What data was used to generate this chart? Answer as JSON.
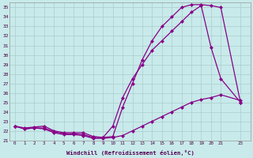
{
  "title": "",
  "xlabel": "Windchill (Refroidissement éolien,°C)",
  "bg_color": "#c8eaea",
  "grid_color": "#aacccc",
  "line_color": "#880088",
  "xlim": [
    -0.5,
    23.5
  ],
  "ylim": [
    21,
    35.5
  ],
  "xtick_vals": [
    0,
    1,
    2,
    3,
    4,
    5,
    6,
    7,
    8,
    9,
    10,
    11,
    12,
    13,
    14,
    15,
    16,
    17,
    18,
    19,
    20,
    21,
    23
  ],
  "ytick_vals": [
    21,
    22,
    23,
    24,
    25,
    26,
    27,
    28,
    29,
    30,
    31,
    32,
    33,
    34,
    35
  ],
  "line1_x": [
    0,
    1,
    2,
    3,
    4,
    5,
    6,
    7,
    8,
    9,
    10,
    11,
    12,
    13,
    14,
    15,
    16,
    17,
    18,
    19,
    20,
    21,
    23
  ],
  "line1_y": [
    22.5,
    22.2,
    22.3,
    22.2,
    21.8,
    21.6,
    21.6,
    21.5,
    21.2,
    21.2,
    21.3,
    21.5,
    22.0,
    22.5,
    23.0,
    23.5,
    24.0,
    24.5,
    25.0,
    25.3,
    25.5,
    25.8,
    25.2
  ],
  "line2_x": [
    0,
    1,
    2,
    3,
    4,
    5,
    6,
    7,
    8,
    9,
    10,
    11,
    12,
    13,
    14,
    15,
    16,
    17,
    18,
    19,
    20,
    21,
    23
  ],
  "line2_y": [
    22.5,
    22.3,
    22.4,
    22.5,
    22.0,
    21.8,
    21.8,
    21.8,
    21.4,
    21.3,
    22.5,
    25.5,
    27.5,
    29.0,
    30.5,
    31.5,
    32.5,
    33.5,
    34.5,
    35.2,
    30.8,
    27.5,
    25.0
  ],
  "line3_x": [
    0,
    1,
    2,
    3,
    4,
    5,
    6,
    7,
    8,
    9,
    10,
    11,
    12,
    13,
    14,
    15,
    16,
    17,
    18,
    19,
    20,
    21,
    23
  ],
  "line3_y": [
    22.5,
    22.2,
    22.3,
    22.3,
    21.9,
    21.7,
    21.7,
    21.6,
    21.3,
    21.3,
    21.4,
    24.5,
    27.0,
    29.5,
    31.5,
    33.0,
    34.0,
    35.0,
    35.3,
    35.3,
    35.2,
    35.0,
    25.0
  ],
  "marker": "D",
  "marker_size": 2.5,
  "line_width": 0.9
}
